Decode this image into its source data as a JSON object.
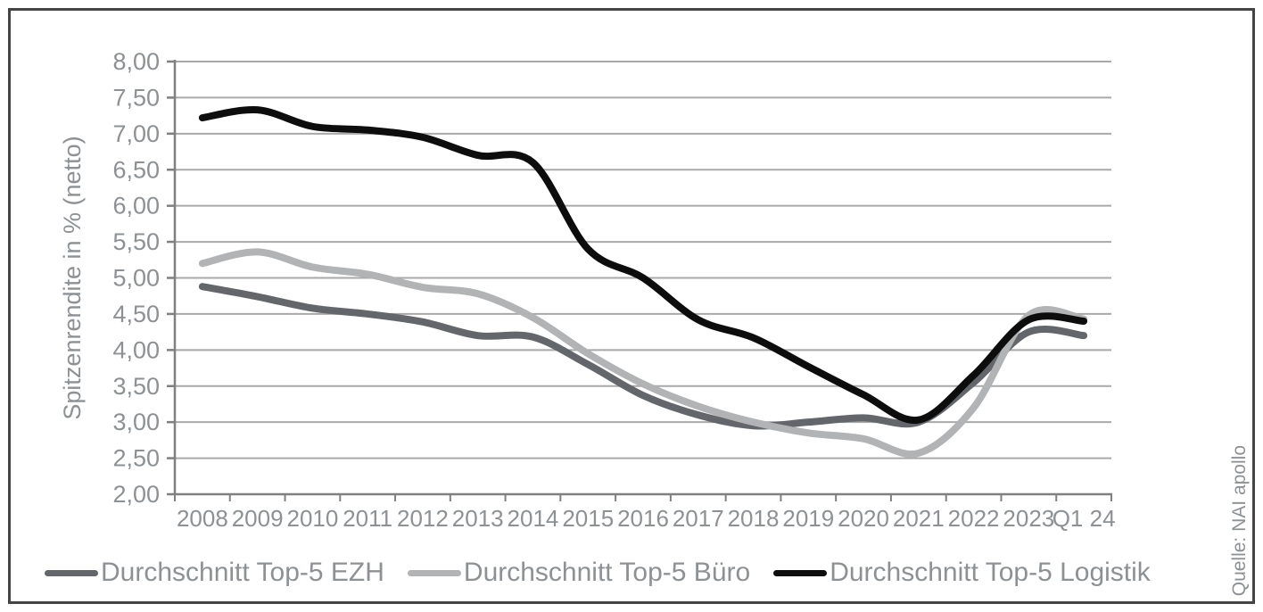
{
  "source": "Quelle: NAI apollo",
  "colors": {
    "frame_border": "#454545",
    "axis": "#808080",
    "gridline": "#a9a9a9",
    "text": "#8d9194",
    "background": "#ffffff"
  },
  "chart_data": {
    "type": "line",
    "title": "",
    "xlabel": "",
    "ylabel": "Spitzenrendite in % (netto)",
    "ylim": [
      2.0,
      8.0
    ],
    "y_step": 0.5,
    "y_tick_labels": [
      "8,00",
      "7,50",
      "7,00",
      "6,50",
      "6,00",
      "5,50",
      "5,00",
      "4,50",
      "4,00",
      "3,50",
      "3,00",
      "2,50",
      "2,00"
    ],
    "categories": [
      "2008",
      "2009",
      "2010",
      "2011",
      "2012",
      "2013",
      "2014",
      "2015",
      "2016",
      "2017",
      "2018",
      "2019",
      "2020",
      "2021",
      "2022",
      "2023",
      "Q1 24"
    ],
    "grid": true,
    "smoothed": true,
    "legend_position": "bottom",
    "series": [
      {
        "name": "Durchschnitt Top-5 EZH",
        "color": "#63676b",
        "values": [
          4.88,
          4.74,
          4.58,
          4.5,
          4.39,
          4.2,
          4.18,
          3.8,
          3.37,
          3.1,
          2.95,
          3.0,
          3.06,
          3.0,
          3.55,
          4.25,
          4.2
        ]
      },
      {
        "name": "Durchschnitt Top-5 Büro",
        "color": "#b1b3b5",
        "values": [
          5.2,
          5.36,
          5.15,
          5.05,
          4.87,
          4.78,
          4.45,
          3.95,
          3.53,
          3.22,
          3.0,
          2.85,
          2.77,
          2.57,
          3.2,
          4.48,
          4.43
        ]
      },
      {
        "name": "Durchschnitt Top-5 Logistik",
        "color": "#0d0d0d",
        "values": [
          7.22,
          7.33,
          7.1,
          7.05,
          6.95,
          6.7,
          6.6,
          5.4,
          5.0,
          4.42,
          4.17,
          3.77,
          3.38,
          3.03,
          3.65,
          4.42,
          4.4
        ]
      }
    ]
  }
}
